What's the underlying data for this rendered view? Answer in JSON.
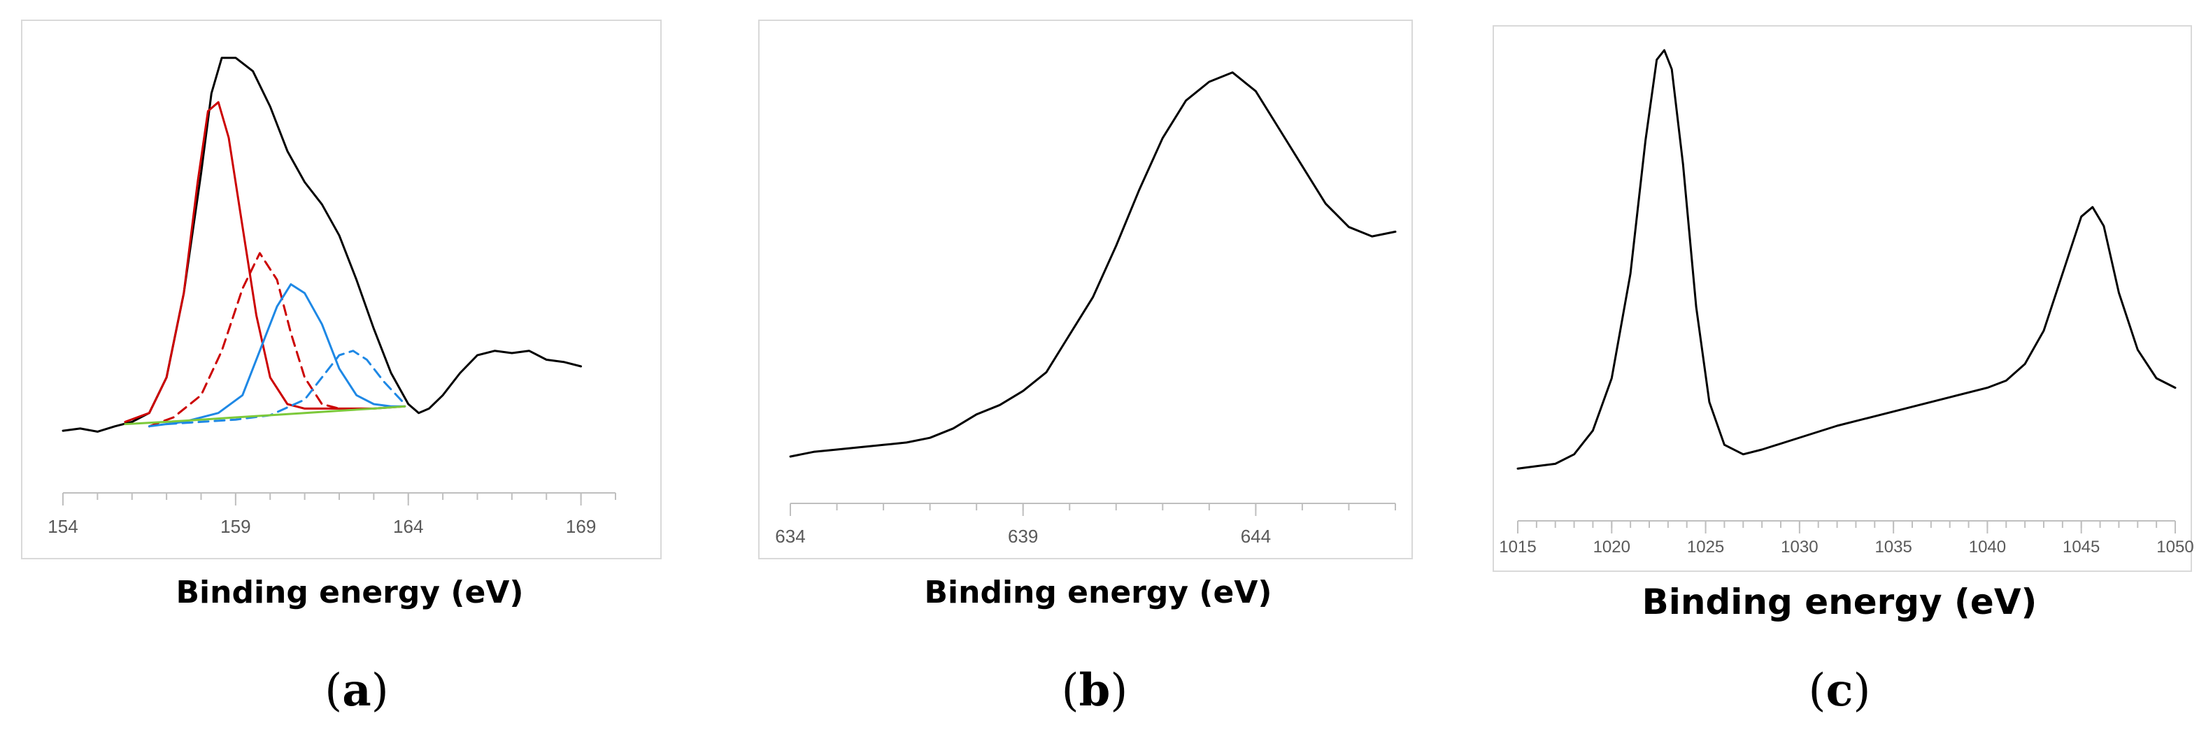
{
  "chart_data": [
    {
      "type": "line",
      "panel_label": "a",
      "xlabel": "Binding energy (eV)",
      "ylabel": "",
      "title": "",
      "xlim": [
        154,
        170
      ],
      "ylim": [
        0,
        100
      ],
      "x_ticks": [
        154,
        159,
        164,
        169
      ],
      "grid": false,
      "series": [
        {
          "style": "solid",
          "color": "#000000",
          "points": [
            [
              154,
              14
            ],
            [
              154.5,
              14.5
            ],
            [
              155,
              13.8
            ],
            [
              155.5,
              15
            ],
            [
              156,
              16
            ],
            [
              156.5,
              18
            ],
            [
              157,
              26
            ],
            [
              157.5,
              45
            ],
            [
              158,
              72
            ],
            [
              158.3,
              90
            ],
            [
              158.6,
              98
            ],
            [
              159,
              98
            ],
            [
              159.5,
              95
            ],
            [
              160,
              87
            ],
            [
              160.5,
              77
            ],
            [
              161,
              70
            ],
            [
              161.5,
              65
            ],
            [
              162,
              58
            ],
            [
              162.5,
              48
            ],
            [
              163,
              37
            ],
            [
              163.5,
              27
            ],
            [
              164,
              20
            ],
            [
              164.3,
              18
            ],
            [
              164.6,
              19
            ],
            [
              165,
              22
            ],
            [
              165.5,
              27
            ],
            [
              166,
              31
            ],
            [
              166.5,
              32
            ],
            [
              167,
              31.5
            ],
            [
              167.5,
              32
            ],
            [
              168,
              30
            ],
            [
              168.5,
              29.5
            ],
            [
              169,
              28.5
            ]
          ]
        },
        {
          "style": "solid",
          "color": "#cc0000",
          "points": [
            [
              155.8,
              16
            ],
            [
              156.5,
              18
            ],
            [
              157,
              26
            ],
            [
              157.5,
              45
            ],
            [
              157.9,
              70
            ],
            [
              158.2,
              86
            ],
            [
              158.5,
              88
            ],
            [
              158.8,
              80
            ],
            [
              159.2,
              60
            ],
            [
              159.6,
              40
            ],
            [
              160,
              26
            ],
            [
              160.5,
              20
            ],
            [
              161,
              19
            ],
            [
              162,
              19
            ],
            [
              163,
              19
            ],
            [
              163.9,
              19.5
            ]
          ]
        },
        {
          "style": "dashed",
          "color": "#cc0000",
          "points": [
            [
              156.5,
              15
            ],
            [
              157.2,
              17
            ],
            [
              158,
              22
            ],
            [
              158.6,
              32
            ],
            [
              159.2,
              46
            ],
            [
              159.7,
              54
            ],
            [
              160.2,
              48
            ],
            [
              160.6,
              36
            ],
            [
              161,
              26
            ],
            [
              161.5,
              20
            ],
            [
              162,
              19
            ]
          ]
        },
        {
          "style": "solid",
          "color": "#1e88e5",
          "points": [
            [
              156.5,
              15
            ],
            [
              157.5,
              16
            ],
            [
              158.5,
              18
            ],
            [
              159.2,
              22
            ],
            [
              159.7,
              32
            ],
            [
              160.2,
              42
            ],
            [
              160.6,
              47
            ],
            [
              161,
              45
            ],
            [
              161.5,
              38
            ],
            [
              162,
              28
            ],
            [
              162.5,
              22
            ],
            [
              163,
              20
            ],
            [
              163.5,
              19.5
            ],
            [
              163.9,
              19.5
            ]
          ]
        },
        {
          "style": "dashed",
          "color": "#1e88e5",
          "points": [
            [
              157,
              15.5
            ],
            [
              158,
              16
            ],
            [
              159,
              16.5
            ],
            [
              160,
              17.5
            ],
            [
              161,
              21
            ],
            [
              161.6,
              27
            ],
            [
              162,
              31
            ],
            [
              162.4,
              32
            ],
            [
              162.8,
              30
            ],
            [
              163.3,
              25
            ],
            [
              163.9,
              20
            ]
          ]
        },
        {
          "style": "solid",
          "color": "#7cc93a",
          "points": [
            [
              155.8,
              15.5
            ],
            [
              157,
              16
            ],
            [
              158,
              16.5
            ],
            [
              159,
              17
            ],
            [
              160,
              17.5
            ],
            [
              161,
              18
            ],
            [
              162,
              18.5
            ],
            [
              163,
              19
            ],
            [
              163.9,
              19.5
            ]
          ]
        }
      ]
    },
    {
      "type": "line",
      "panel_label": "b",
      "xlabel": "Binding energy (eV)",
      "ylabel": "",
      "title": "",
      "xlim": [
        634,
        647
      ],
      "ylim": [
        0,
        100
      ],
      "x_ticks": [
        634,
        639,
        644
      ],
      "grid": false,
      "series": [
        {
          "style": "solid",
          "color": "#000000",
          "points": [
            [
              634,
              10
            ],
            [
              634.5,
              11
            ],
            [
              635,
              11.5
            ],
            [
              635.5,
              12
            ],
            [
              636,
              12.5
            ],
            [
              636.5,
              13
            ],
            [
              637,
              14
            ],
            [
              637.5,
              16
            ],
            [
              638,
              19
            ],
            [
              638.5,
              21
            ],
            [
              639,
              24
            ],
            [
              639.5,
              28
            ],
            [
              640,
              36
            ],
            [
              640.5,
              44
            ],
            [
              641,
              55
            ],
            [
              641.5,
              67
            ],
            [
              642,
              78
            ],
            [
              642.5,
              86
            ],
            [
              643,
              90
            ],
            [
              643.5,
              92
            ],
            [
              644,
              88
            ],
            [
              644.5,
              80
            ],
            [
              645,
              72
            ],
            [
              645.5,
              64
            ],
            [
              646,
              59
            ],
            [
              646.5,
              57
            ],
            [
              647,
              58
            ]
          ]
        }
      ]
    },
    {
      "type": "line",
      "panel_label": "c",
      "xlabel": "Binding energy (eV)",
      "ylabel": "",
      "title": "",
      "xlim": [
        1015,
        1050
      ],
      "ylim": [
        0,
        100
      ],
      "x_ticks": [
        1015,
        1020,
        1025,
        1030,
        1035,
        1040,
        1045,
        1050
      ],
      "grid": false,
      "series": [
        {
          "style": "solid",
          "color": "#000000",
          "points": [
            [
              1015,
              11
            ],
            [
              1016,
              11.5
            ],
            [
              1017,
              12
            ],
            [
              1018,
              14
            ],
            [
              1019,
              19
            ],
            [
              1020,
              30
            ],
            [
              1021,
              52
            ],
            [
              1021.8,
              80
            ],
            [
              1022.4,
              97
            ],
            [
              1022.8,
              99
            ],
            [
              1023.2,
              95
            ],
            [
              1023.8,
              75
            ],
            [
              1024.5,
              45
            ],
            [
              1025.2,
              25
            ],
            [
              1026,
              16
            ],
            [
              1027,
              14
            ],
            [
              1028,
              15
            ],
            [
              1030,
              17.5
            ],
            [
              1032,
              20
            ],
            [
              1034,
              22
            ],
            [
              1036,
              24
            ],
            [
              1038,
              26
            ],
            [
              1040,
              28
            ],
            [
              1041,
              29.5
            ],
            [
              1042,
              33
            ],
            [
              1043,
              40
            ],
            [
              1044,
              52
            ],
            [
              1045,
              64
            ],
            [
              1045.6,
              66
            ],
            [
              1046.2,
              62
            ],
            [
              1047,
              48
            ],
            [
              1048,
              36
            ],
            [
              1049,
              30
            ],
            [
              1050,
              28
            ]
          ]
        }
      ]
    }
  ]
}
